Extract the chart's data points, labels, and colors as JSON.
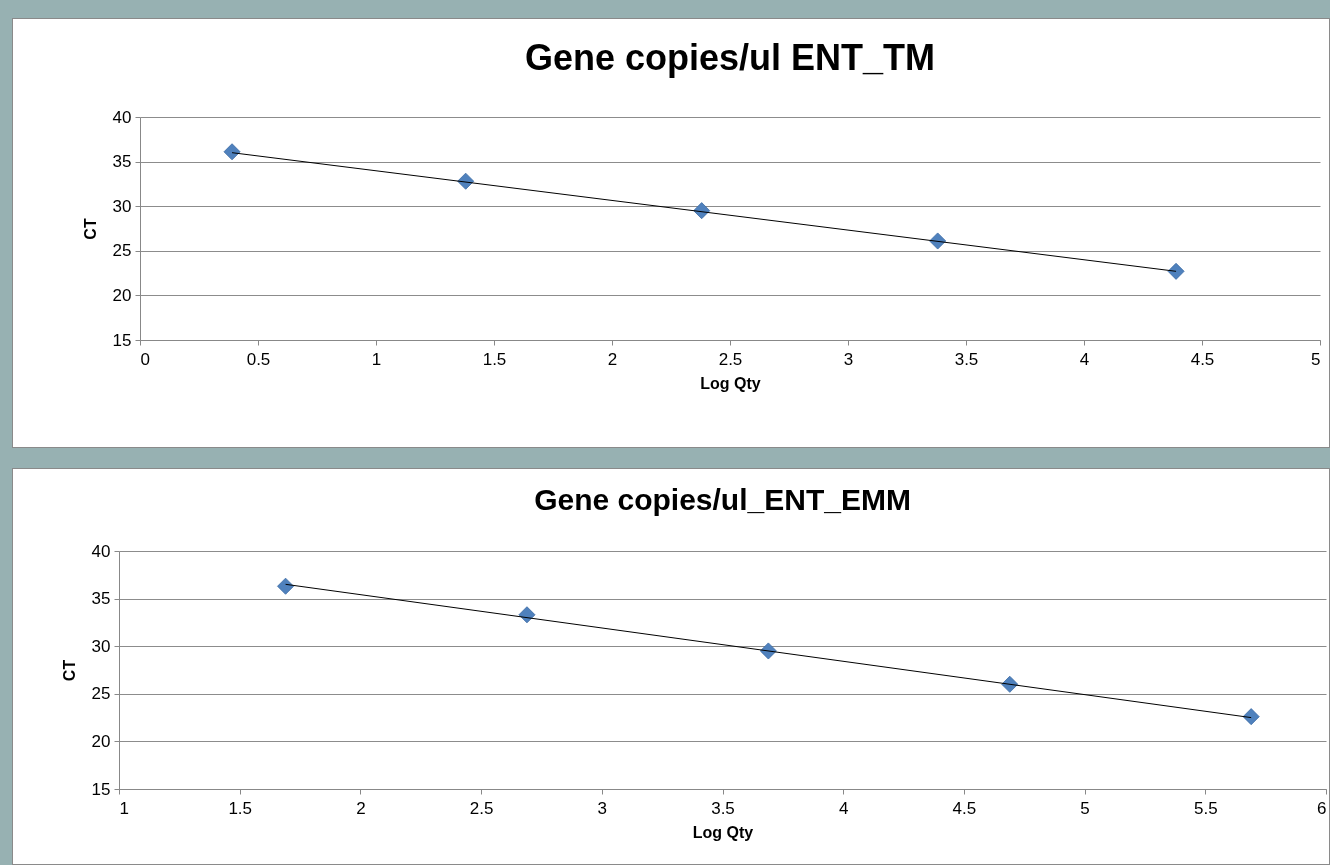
{
  "chart_data": [
    {
      "type": "scatter",
      "title": "Gene copies/ul ENT_TM",
      "xlabel": "Log Qty",
      "ylabel": "CT",
      "x": [
        0.39,
        1.38,
        2.38,
        3.38,
        4.39
      ],
      "xlim": [
        0,
        5
      ],
      "xticks": [
        0,
        0.5,
        1,
        1.5,
        2,
        2.5,
        3,
        3.5,
        4,
        4.5,
        5
      ],
      "ylim": [
        15,
        40
      ],
      "yticks": [
        15,
        20,
        25,
        30,
        35,
        40
      ],
      "grid": "y",
      "series": [
        {
          "color": "#4f81bd",
          "marker": "diamond",
          "values": [
            36.1,
            32.8,
            29.5,
            26.1,
            22.7
          ]
        },
        {
          "type": "line",
          "color": "#000000",
          "x": [
            0.39,
            4.39
          ],
          "values": [
            36.0,
            22.7
          ]
        }
      ]
    },
    {
      "type": "scatter",
      "title": "Gene copies/ul_ENT_EMM",
      "xlabel": "Log Qty",
      "ylabel": "CT",
      "x": [
        1.69,
        2.69,
        3.69,
        4.69,
        5.69
      ],
      "xlim": [
        1,
        6
      ],
      "xticks": [
        1,
        1.5,
        2,
        2.5,
        3,
        3.5,
        4,
        4.5,
        5,
        5.5,
        6
      ],
      "ylim": [
        15,
        40
      ],
      "yticks": [
        15,
        20,
        25,
        30,
        35,
        40
      ],
      "grid": "y",
      "series": [
        {
          "color": "#4f81bd",
          "marker": "diamond",
          "values": [
            36.3,
            33.3,
            29.5,
            26.0,
            22.6
          ]
        },
        {
          "type": "line",
          "color": "#000000",
          "x": [
            1.69,
            5.69
          ],
          "values": [
            36.5,
            22.5
          ]
        }
      ]
    }
  ]
}
